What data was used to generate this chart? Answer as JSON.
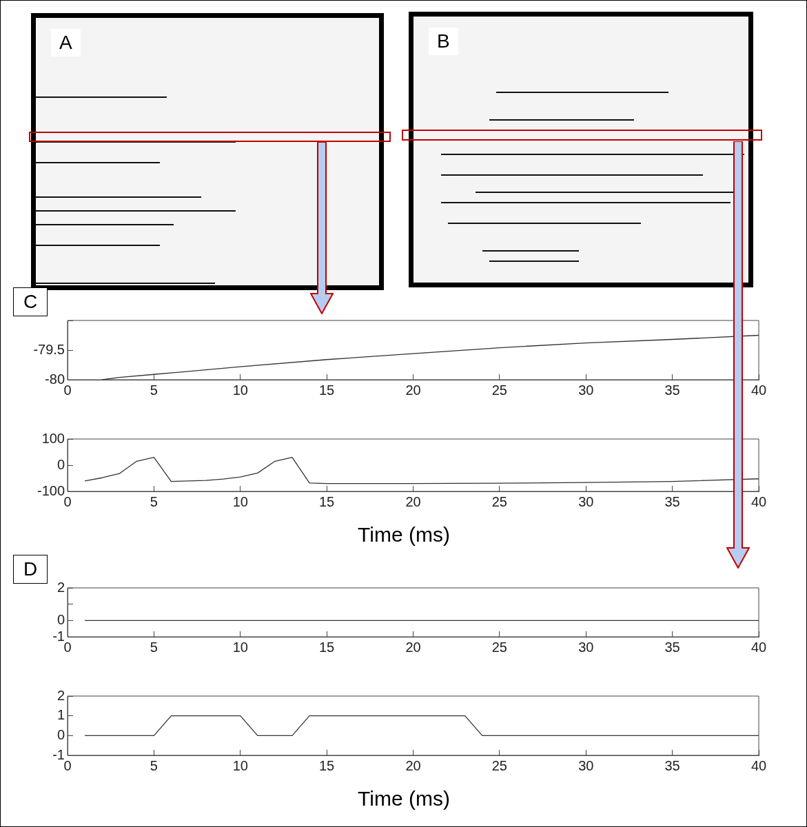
{
  "chart_data": [
    {
      "type": "other",
      "annotations": [
        "A"
      ]
    },
    {
      "type": "other",
      "annotations": [
        "B"
      ]
    },
    {
      "type": "line",
      "annotations": [
        "C"
      ],
      "x": [
        2,
        3,
        5,
        10,
        15,
        20,
        25,
        30,
        35,
        40
      ],
      "values": [
        -80,
        -79.96,
        -79.91,
        -79.78,
        -79.66,
        -79.56,
        -79.46,
        -79.38,
        -79.32,
        -79.25
      ],
      "color": "#333333",
      "xlim": [
        0,
        40
      ],
      "ylim": [
        -80,
        -79
      ],
      "xticks": [
        0,
        5,
        10,
        15,
        20,
        25,
        30,
        35,
        40
      ],
      "yticks": [
        -80,
        -79.5,
        {
          "value": -79,
          "label": null
        }
      ]
    },
    {
      "type": "line",
      "x": [
        1,
        2,
        3,
        4,
        5,
        6,
        7,
        8,
        9,
        10,
        11,
        12,
        13,
        14,
        15,
        20,
        25,
        30,
        35,
        40
      ],
      "values": [
        -60,
        -48,
        -32,
        15,
        30,
        -62,
        -60,
        -58,
        -53,
        -45,
        -30,
        15,
        30,
        -68,
        -70,
        -70,
        -69,
        -66,
        -62,
        -52
      ],
      "color": "#333333",
      "xlabel": "Time (ms)",
      "xlim": [
        0,
        40
      ],
      "ylim": [
        -100,
        100
      ],
      "xticks": [
        0,
        5,
        10,
        15,
        20,
        25,
        30,
        35,
        40
      ],
      "yticks": [
        -100,
        0,
        100
      ]
    },
    {
      "type": "line",
      "annotations": [
        "D"
      ],
      "x": [
        1,
        40
      ],
      "values": [
        0,
        0
      ],
      "color": "#333333",
      "xlim": [
        0,
        40
      ],
      "ylim": [
        -1,
        2
      ],
      "xticks": [
        0,
        5,
        10,
        15,
        20,
        25,
        30,
        35,
        40
      ],
      "yticks": [
        -1,
        0,
        {
          "value": 1,
          "label": null
        },
        2
      ]
    },
    {
      "type": "line",
      "x": [
        1,
        5,
        6,
        10,
        11,
        13,
        14,
        23,
        24,
        40
      ],
      "values": [
        0,
        0,
        1,
        1,
        0,
        0,
        1,
        1,
        0,
        0
      ],
      "color": "#333333",
      "xlabel": "Time (ms)",
      "xlim": [
        0,
        40
      ],
      "ylim": [
        -1,
        2
      ],
      "xticks": [
        0,
        5,
        10,
        15,
        20,
        25,
        30,
        35,
        40
      ],
      "yticks": [
        -1,
        0,
        1,
        2
      ]
    }
  ]
}
